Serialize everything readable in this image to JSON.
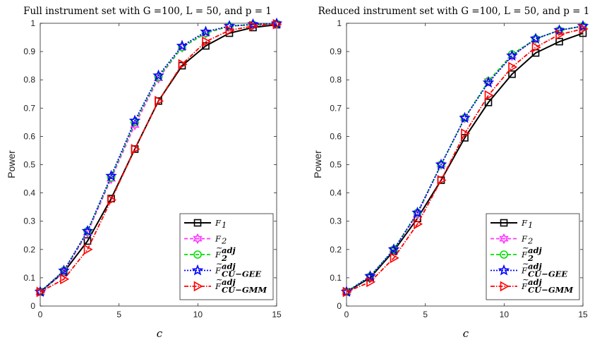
{
  "chart_data": [
    {
      "type": "line",
      "title": "Full instrument set with G =100, L = 50, and p = 1",
      "xlabel": "c",
      "ylabel": "Power",
      "xlim": [
        0,
        15
      ],
      "ylim": [
        0,
        1
      ],
      "xticks": [
        "0",
        "5",
        "10",
        "15"
      ],
      "yticks": [
        "0",
        "0.1",
        "0.2",
        "0.3",
        "0.4",
        "0.5",
        "0.6",
        "0.7",
        "0.8",
        "0.9",
        "1"
      ],
      "grid": false,
      "legend_position": "bottom-right",
      "x": [
        0,
        1.5,
        3,
        4.5,
        6,
        7.5,
        9,
        10.5,
        12,
        13.5,
        15
      ],
      "series": [
        {
          "name": "F1",
          "color": "#000000",
          "marker": "square",
          "dash": "solid",
          "values": [
            0.05,
            0.12,
            0.23,
            0.38,
            0.555,
            0.725,
            0.85,
            0.92,
            0.965,
            0.985,
            0.995
          ]
        },
        {
          "name": "F2",
          "color": "#ff33ff",
          "marker": "hexagram",
          "dash": "dashed",
          "values": [
            0.05,
            0.12,
            0.26,
            0.45,
            0.64,
            0.805,
            0.915,
            0.965,
            0.99,
            0.995,
            0.998
          ]
        },
        {
          "name": "F2 adj",
          "color": "#00e000",
          "marker": "circle",
          "dash": "dashed",
          "values": [
            0.05,
            0.125,
            0.265,
            0.455,
            0.65,
            0.81,
            0.915,
            0.965,
            0.99,
            0.995,
            0.998
          ]
        },
        {
          "name": "F CU-GEE adj",
          "color": "#0000ff",
          "marker": "star",
          "dash": "dotted",
          "values": [
            0.05,
            0.125,
            0.265,
            0.46,
            0.655,
            0.815,
            0.92,
            0.97,
            0.99,
            0.996,
            0.999
          ]
        },
        {
          "name": "F CU-GMM adj",
          "color": "#ff0000",
          "marker": "triangle-right",
          "dash": "dashdot",
          "values": [
            0.05,
            0.095,
            0.2,
            0.375,
            0.555,
            0.725,
            0.855,
            0.935,
            0.975,
            0.99,
            0.997
          ]
        }
      ]
    },
    {
      "type": "line",
      "title": "Reduced instrument set with G =100, L = 50, and p = 1",
      "xlabel": "c",
      "ylabel": "Power",
      "xlim": [
        0,
        15
      ],
      "ylim": [
        0,
        1
      ],
      "xticks": [
        "0",
        "5",
        "10",
        "15"
      ],
      "yticks": [
        "0",
        "0.1",
        "0.2",
        "0.3",
        "0.4",
        "0.5",
        "0.6",
        "0.7",
        "0.8",
        "0.9",
        "1"
      ],
      "grid": false,
      "legend_position": "bottom-right",
      "x": [
        0,
        1.5,
        3,
        4.5,
        6,
        7.5,
        9,
        10.5,
        12,
        13.5,
        15
      ],
      "series": [
        {
          "name": "F1",
          "color": "#000000",
          "marker": "square",
          "dash": "solid",
          "values": [
            0.05,
            0.1,
            0.195,
            0.31,
            0.445,
            0.595,
            0.72,
            0.82,
            0.895,
            0.935,
            0.965
          ]
        },
        {
          "name": "F2",
          "color": "#ff33ff",
          "marker": "hexagram",
          "dash": "dashed",
          "values": [
            0.05,
            0.105,
            0.2,
            0.325,
            0.5,
            0.665,
            0.795,
            0.885,
            0.945,
            0.975,
            0.99
          ]
        },
        {
          "name": "F2 adj",
          "color": "#00e000",
          "marker": "circle",
          "dash": "dashed",
          "values": [
            0.05,
            0.105,
            0.2,
            0.33,
            0.5,
            0.665,
            0.795,
            0.89,
            0.945,
            0.975,
            0.99
          ]
        },
        {
          "name": "F CU-GEE adj",
          "color": "#0000ff",
          "marker": "star",
          "dash": "dotted",
          "values": [
            0.05,
            0.105,
            0.2,
            0.33,
            0.5,
            0.665,
            0.79,
            0.885,
            0.945,
            0.975,
            0.99
          ]
        },
        {
          "name": "F CU-GMM adj",
          "color": "#ff0000",
          "marker": "triangle-right",
          "dash": "dashdot",
          "values": [
            0.05,
            0.085,
            0.17,
            0.29,
            0.445,
            0.61,
            0.745,
            0.845,
            0.915,
            0.96,
            0.98
          ]
        }
      ]
    }
  ],
  "legend": {
    "entries": [
      {
        "base": "F",
        "sub": "1",
        "sup": "",
        "tilde": false
      },
      {
        "base": "F",
        "sub": "2",
        "sup": "",
        "tilde": false
      },
      {
        "base": "F",
        "sub": "2",
        "sup": "adj",
        "tilde": true
      },
      {
        "base": "F",
        "sub": "CU−GEE",
        "sup": "adj",
        "tilde": true
      },
      {
        "base": "F",
        "sub": "CU−GMM",
        "sup": "adj",
        "tilde": true
      }
    ]
  }
}
